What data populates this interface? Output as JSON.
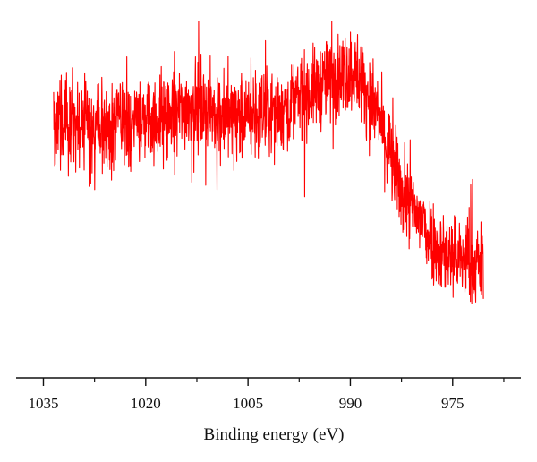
{
  "chart_data": {
    "type": "line",
    "title": "",
    "xlabel": "Binding energy (eV)",
    "ylabel": "",
    "x_reversed": true,
    "xlim": [
      1039,
      965
    ],
    "ylim": [
      0,
      100
    ],
    "x_ticks_major": [
      1035,
      1020,
      1005,
      990,
      975
    ],
    "x_tick_labels": [
      "1035",
      "1020",
      "1005",
      "990",
      "975"
    ],
    "x_ticks_minor": [
      1027.5,
      1012.5,
      997.5,
      982.5,
      967.5
    ],
    "y_axis_visible": false,
    "grid": false,
    "legend": "none",
    "series": [
      {
        "color": "#ff0000",
        "noise": 6,
        "x": [
          1033.5,
          1030,
          1025,
          1020,
          1016,
          1012.5,
          1008,
          1004,
          1000,
          996,
          992,
          989.5,
          988,
          986,
          984,
          982,
          979.5,
          977,
          974,
          971.5,
          970.5
        ],
        "values": [
          70,
          69,
          68,
          70,
          72,
          75,
          71,
          71,
          73,
          78,
          83,
          85,
          80,
          72,
          58,
          47,
          40,
          32,
          29,
          28,
          27
        ]
      }
    ]
  }
}
